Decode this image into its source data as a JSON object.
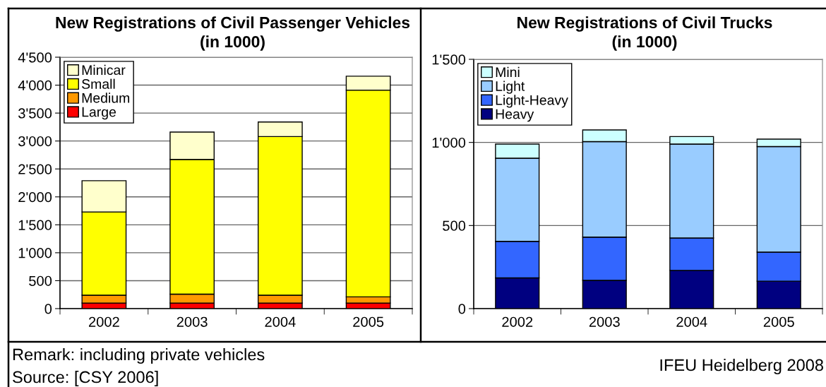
{
  "chart_data": [
    {
      "type": "bar",
      "title": "New Registrations of Civil Passenger Vehicles",
      "subtitle": "(in 1000)",
      "categories": [
        "2002",
        "2003",
        "2004",
        "2005"
      ],
      "stacked": true,
      "series": [
        {
          "name": "Large",
          "color": "#ff0000",
          "values": [
            100,
            100,
            100,
            100
          ]
        },
        {
          "name": "Medium",
          "color": "#ff9900",
          "values": [
            140,
            160,
            140,
            110
          ]
        },
        {
          "name": "Small",
          "color": "#ffff00",
          "values": [
            1490,
            2410,
            2840,
            3700
          ]
        },
        {
          "name": "Minicar",
          "color": "#ffffcc",
          "values": [
            560,
            490,
            260,
            250
          ]
        }
      ],
      "ylim": [
        0,
        4500
      ],
      "yticks": [
        0,
        500,
        {
          "value": 1000,
          "label": "1'000"
        },
        {
          "value": 1500,
          "label": "1'500"
        },
        {
          "value": 2000,
          "label": "2'000"
        },
        {
          "value": 2500,
          "label": "2'500"
        },
        {
          "value": 3000,
          "label": "3'000"
        },
        {
          "value": 3500,
          "label": "3'500"
        },
        {
          "value": 4000,
          "label": "4'000"
        },
        {
          "value": 4500,
          "label": "4'500"
        }
      ],
      "grid": "y",
      "legend": "top left",
      "annotations": [
        "Remark: including private vehicles",
        "Source: [CSY 2006]"
      ]
    },
    {
      "type": "bar",
      "title": "New Registrations of Civil Trucks",
      "subtitle": "(in 1000)",
      "categories": [
        "2002",
        "2003",
        "2004",
        "2005"
      ],
      "stacked": true,
      "series": [
        {
          "name": "Heavy",
          "color": "#000080",
          "values": [
            185,
            170,
            230,
            165
          ]
        },
        {
          "name": "Light-Heavy",
          "color": "#3366ff",
          "values": [
            220,
            260,
            195,
            175
          ]
        },
        {
          "name": "Light",
          "color": "#99ccff",
          "values": [
            500,
            575,
            565,
            635
          ]
        },
        {
          "name": "Mini",
          "color": "#ccffff",
          "values": [
            85,
            70,
            45,
            45
          ]
        }
      ],
      "ylim": [
        0,
        1500
      ],
      "yticks": [
        0,
        500,
        {
          "value": 1000,
          "label": "1'000"
        },
        {
          "value": 1500,
          "label": "1'500"
        }
      ],
      "grid": "y",
      "legend": "top left",
      "annotations": [
        "IFEU Heidelberg 2008"
      ]
    }
  ]
}
